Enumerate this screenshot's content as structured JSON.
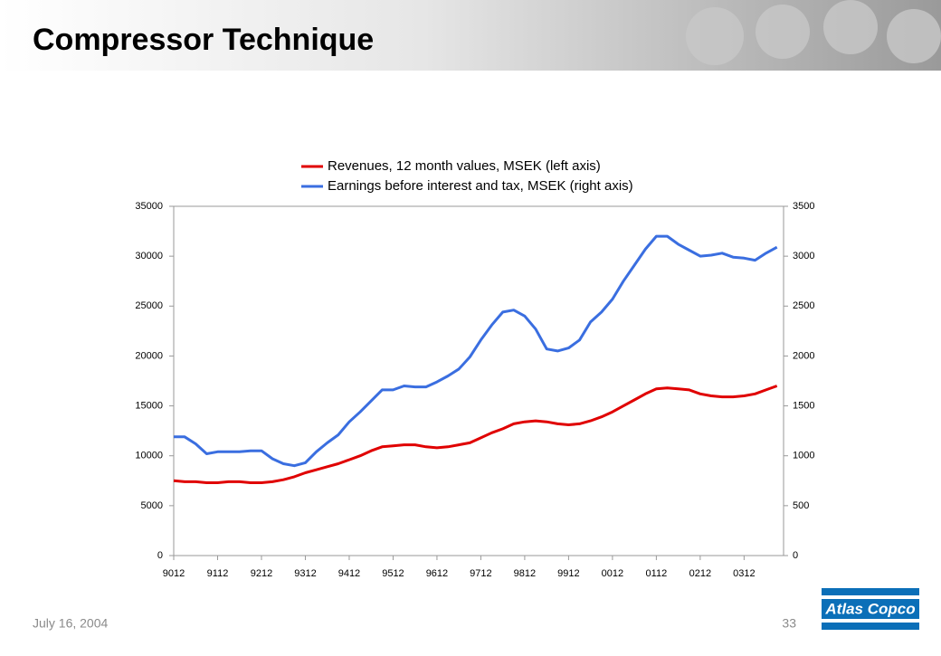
{
  "header": {
    "title": "Compressor Technique"
  },
  "footer": {
    "date": "July 16, 2004",
    "page": "33",
    "logo": "Atlas Copco"
  },
  "chart_data": {
    "type": "line",
    "grid": false,
    "legend": "top",
    "categories": [
      "9012",
      null,
      null,
      null,
      "9112",
      null,
      null,
      null,
      "9212",
      null,
      null,
      null,
      "9312",
      null,
      null,
      null,
      "9412",
      null,
      null,
      null,
      "9512",
      null,
      null,
      null,
      "9612",
      null,
      null,
      null,
      "9712",
      null,
      null,
      null,
      "9812",
      null,
      null,
      null,
      "9912",
      null,
      null,
      null,
      "0012",
      null,
      null,
      null,
      "0112",
      null,
      null,
      null,
      "0212",
      null,
      null,
      null,
      "0312",
      null,
      null,
      null
    ],
    "series": [
      {
        "name": "Revenues, 12 month values, MSEK (left axis)",
        "color": "#e00000",
        "values": [
          7500,
          7400,
          7400,
          7300,
          7300,
          7400,
          7400,
          7300,
          7300,
          7400,
          7600,
          7900,
          8300,
          8600,
          8900,
          9200,
          9600,
          10000,
          10500,
          10900,
          11000,
          11100,
          11100,
          10900,
          10800,
          10900,
          11100,
          11300,
          11800,
          12300,
          12700,
          13200,
          13400,
          13500,
          13400,
          13200,
          13100,
          13200,
          13500,
          13900,
          14400,
          15000,
          15600,
          16200,
          16700,
          16800,
          16700,
          16600,
          16200,
          16000,
          15900,
          15900,
          16000,
          16200,
          16600,
          17000
        ]
      },
      {
        "name": "Earnings before interest and tax, MSEK (right axis)",
        "color": "#3a6ee0",
        "axis": "y2",
        "values": [
          1190,
          1190,
          1120,
          1020,
          1040,
          1040,
          1040,
          1050,
          1050,
          970,
          920,
          900,
          930,
          1040,
          1130,
          1210,
          1340,
          1440,
          1550,
          1660,
          1660,
          1700,
          1690,
          1690,
          1740,
          1800,
          1870,
          1990,
          2160,
          2310,
          2440,
          2460,
          2400,
          2270,
          2070,
          2050,
          2080,
          2160,
          2340,
          2440,
          2570,
          2750,
          2910,
          3070,
          3200,
          3200,
          3120,
          3060,
          3000,
          3010,
          3030,
          2990,
          2980,
          2960,
          3030,
          3090
        ]
      }
    ],
    "ylim": [
      0,
      35000
    ],
    "yticks": [
      0,
      5000,
      10000,
      15000,
      20000,
      25000,
      30000,
      35000
    ],
    "y2lim": [
      0,
      3500
    ],
    "y2ticks": [
      0,
      500,
      1000,
      1500,
      2000,
      2500,
      3000,
      3500
    ]
  }
}
